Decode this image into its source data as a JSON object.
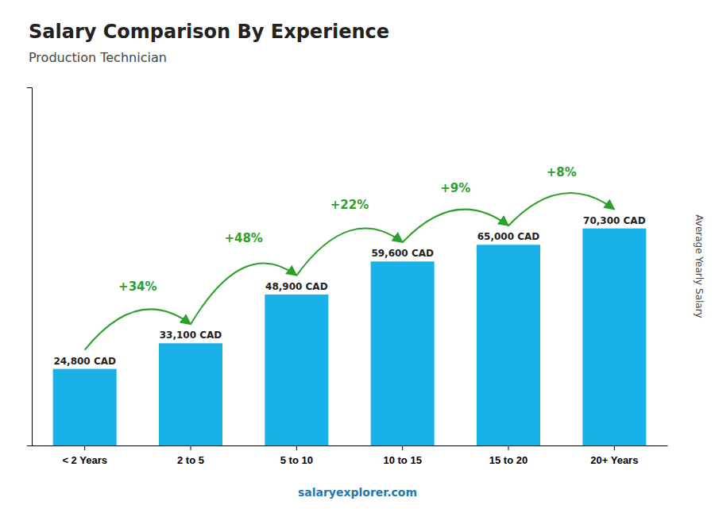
{
  "chart_data": {
    "type": "bar",
    "title": "Salary Comparison By Experience",
    "subtitle": "Production Technician",
    "y_label": "Average Yearly Salary",
    "categories": [
      "< 2 Years",
      "2 to 5",
      "5 to 10",
      "10 to 15",
      "15 to 20",
      "20+ Years"
    ],
    "values": [
      24800,
      33100,
      48900,
      59600,
      65000,
      70300
    ],
    "value_labels": [
      "24,800 CAD",
      "33,100 CAD",
      "48,900 CAD",
      "59,600 CAD",
      "65,000 CAD",
      "70,300 CAD"
    ],
    "data_labels": true,
    "annotations": [
      "+34%",
      "+48%",
      "+22%",
      "+9%",
      "+8%"
    ],
    "watermark": "salaryexplorer.com",
    "color": "#1ab0e8",
    "ylim": [
      0,
      115995
    ],
    "tick_labels": "x",
    "grid": false
  }
}
